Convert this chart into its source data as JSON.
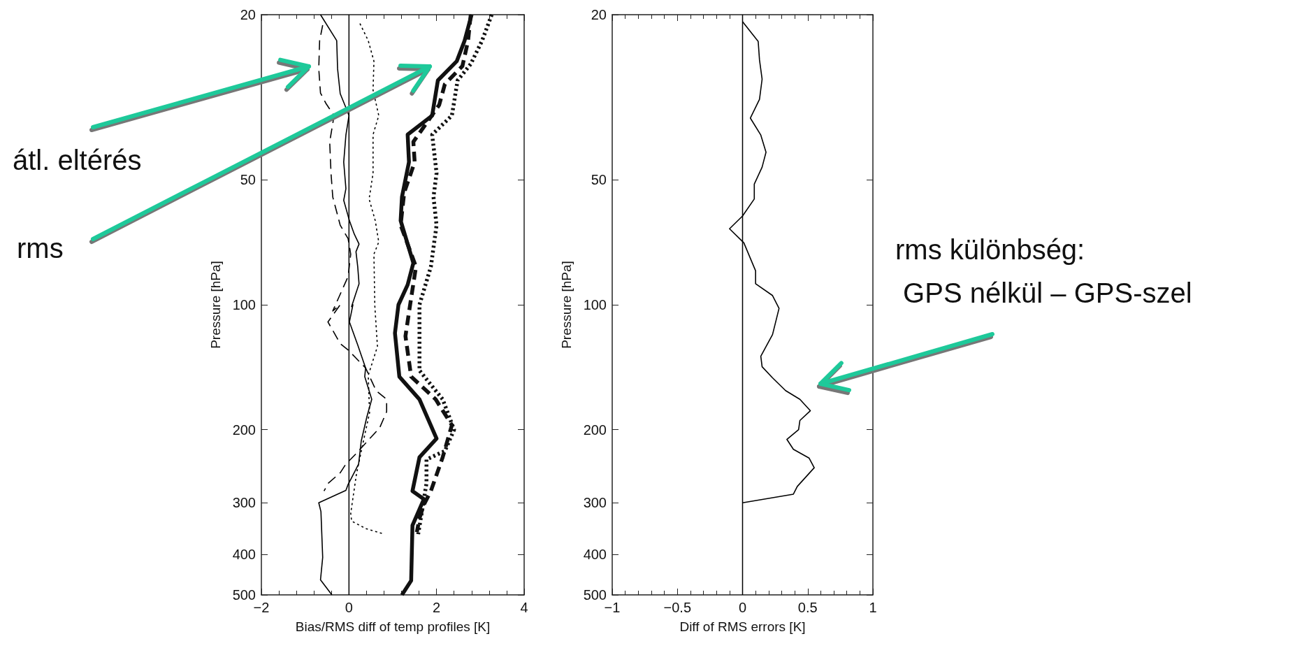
{
  "chart_data": [
    {
      "type": "line",
      "xlabel": "Bias/RMS diff of temp profiles [K]",
      "ylabel": "Pressure [hPa]",
      "xlim": [
        -2,
        4
      ],
      "xticks": [
        {
          "value": -2,
          "label": "−2"
        },
        0,
        2,
        4
      ],
      "ylim": [
        500,
        20
      ],
      "yticks": [
        20,
        50,
        100,
        200,
        300,
        400,
        500
      ],
      "log": "y",
      "marker": "none",
      "ref_lines": [
        {
          "axis": "x",
          "value": 0,
          "color": "#000000"
        }
      ],
      "annotations": [
        "átl. eltérés",
        "rms"
      ],
      "series": [
        {
          "color": "#000000",
          "line_style": "solid",
          "x": [
            -0.65,
            -0.28,
            -0.26,
            -0.2,
            -0.07,
            0,
            -0.07,
            -0.12,
            -0.07,
            -0.12,
            0.01,
            0.12,
            0.23,
            0.16,
            0.2,
            0.23,
            0.06,
            0.09,
            0.01,
            0.2,
            0.38,
            0.36,
            0.52,
            0.41,
            0.28,
            0.22,
            -0.02,
            -0.07,
            -0.69,
            -0.64,
            -0.6,
            -0.65,
            -0.39
          ],
          "values": [
            20,
            23.1,
            27,
            31,
            33.5,
            35,
            39,
            45.3,
            52.5,
            56,
            62.7,
            67.5,
            71.4,
            74.5,
            81,
            89,
            101,
            100,
            110,
            125,
            142,
            149,
            169,
            186,
            213,
            242,
            271,
            280,
            300,
            315,
            406,
            460,
            500
          ]
        },
        {
          "color": "#000000",
          "line_style": "dashed",
          "x": [
            -0.6,
            -0.67,
            -0.69,
            -0.65,
            -0.52,
            -0.34,
            -0.44,
            -0.41,
            -0.37,
            -0.2,
            -0.02,
            0.04,
            -0.02,
            -0.37,
            -0.2,
            -0.48,
            -0.2,
            -0.02,
            0.38,
            0.62,
            0.86,
            0.86,
            0.7,
            0.44,
            0.17,
            -0.07,
            -0.2,
            -0.47,
            -0.57
          ],
          "values": [
            21.2,
            23.1,
            27,
            30.9,
            32.8,
            35,
            40.5,
            48.2,
            55,
            64.3,
            69.3,
            75.5,
            85.5,
            103.5,
            100,
            110,
            124,
            128.5,
            142,
            161,
            169,
            181,
            198,
            212,
            228,
            242,
            254,
            269,
            281
          ]
        },
        {
          "color": "#000000",
          "line_style": "dotted",
          "x": [
            0.25,
            0.44,
            0.57,
            0.55,
            0.68,
            0.55,
            0.55,
            0.46,
            0.6,
            0.68,
            0.57,
            0.59,
            0.65,
            0.44,
            0.47,
            0.33,
            0.17,
            0.04,
            0.06,
            0.38,
            0.81
          ],
          "values": [
            21,
            23.1,
            25.9,
            30.4,
            35,
            38.9,
            48.2,
            55.6,
            62.7,
            70.6,
            75.5,
            100.5,
            126,
            148,
            182,
            213,
            256,
            318,
            332,
            346,
            357
          ]
        },
        {
          "color": "#111111",
          "line_style": "solid",
          "x": [
            2.8,
            2.64,
            2.46,
            2.03,
            1.9,
            1.34,
            1.37,
            1.21,
            1.18,
            1.34,
            1.47,
            1.34,
            1.13,
            1.05,
            1.15,
            1.61,
            2,
            1.61,
            1.45,
            1.71,
            1.45,
            1.42,
            1.21
          ],
          "values": [
            20,
            23.1,
            25.9,
            28.8,
            35,
            38.9,
            45.3,
            55,
            62.7,
            71.4,
            79.3,
            89.5,
            100,
            117,
            149,
            169,
            210,
            233,
            281,
            294,
            340,
            462,
            500
          ]
        },
        {
          "color": "#111111",
          "line_style": "dashed",
          "x": [
            2.78,
            2.72,
            2.59,
            2.19,
            2.06,
            1.47,
            1.5,
            1.26,
            1.18,
            1.53,
            1.39,
            1.29,
            1.42,
            1.98,
            2.35,
            2.14,
            1.87,
            1.71,
            1.61,
            1.55
          ],
          "values": [
            20,
            23.1,
            26.6,
            29.4,
            33,
            40.5,
            45.3,
            53.7,
            64.3,
            81,
            101,
            119,
            149,
            169,
            195,
            233,
            281,
            303,
            327,
            353
          ]
        },
        {
          "color": "#111111",
          "line_style": "dotted",
          "x": [
            3.26,
            3.04,
            2.78,
            2.48,
            2.35,
            1.9,
            2,
            1.93,
            2,
            1.87,
            1.61,
            1.61,
            2.14,
            2.4,
            2.19,
            1.77,
            1.77,
            1.66,
            1.58
          ],
          "values": [
            20,
            23.1,
            26.3,
            28.8,
            35,
            38.9,
            48.2,
            55,
            64.3,
            81,
            100,
            144,
            169,
            200,
            225,
            236,
            269,
            318,
            357
          ]
        }
      ]
    },
    {
      "type": "line",
      "xlabel": "Diff of RMS errors [K]",
      "ylabel": "Pressure [hPa]",
      "xlim": [
        -1,
        1
      ],
      "xticks": [
        {
          "value": -1,
          "label": "−1"
        },
        {
          "value": -0.5,
          "label": "−0.5"
        },
        0,
        0.5,
        1
      ],
      "ylim": [
        500,
        20
      ],
      "yticks": [
        20,
        50,
        100,
        200,
        300,
        400,
        500
      ],
      "log": "y",
      "marker": "none",
      "ref_lines": [
        {
          "axis": "x",
          "value": 0,
          "color": "#000000"
        }
      ],
      "annotations": [
        "rms különbség:\n GPS nélkül – GPS-szel"
      ],
      "series": [
        {
          "color": "#000000",
          "line_style": "solid",
          "x": [
            0,
            0.12,
            0.13,
            0.15,
            0.13,
            0.06,
            0.14,
            0.18,
            0.15,
            0.09,
            0.09,
            0,
            -0.1,
            0.01,
            0.1,
            0.1,
            0.23,
            0.28,
            0.23,
            0.14,
            0.15,
            0.23,
            0.33,
            0.44,
            0.52,
            0.44,
            0.43,
            0.34,
            0.39,
            0.51,
            0.55,
            0.42,
            0.39,
            0
          ],
          "values": [
            20.8,
            23.2,
            25.7,
            28.6,
            32,
            35.5,
            39,
            42.9,
            46.6,
            51.2,
            55.6,
            61.1,
            65.6,
            70.9,
            82.8,
            89,
            95,
            102,
            118,
            133,
            141,
            150,
            161,
            169,
            180,
            190,
            200,
            211,
            223,
            234,
            247,
            274,
            286,
            300
          ]
        }
      ]
    }
  ]
}
